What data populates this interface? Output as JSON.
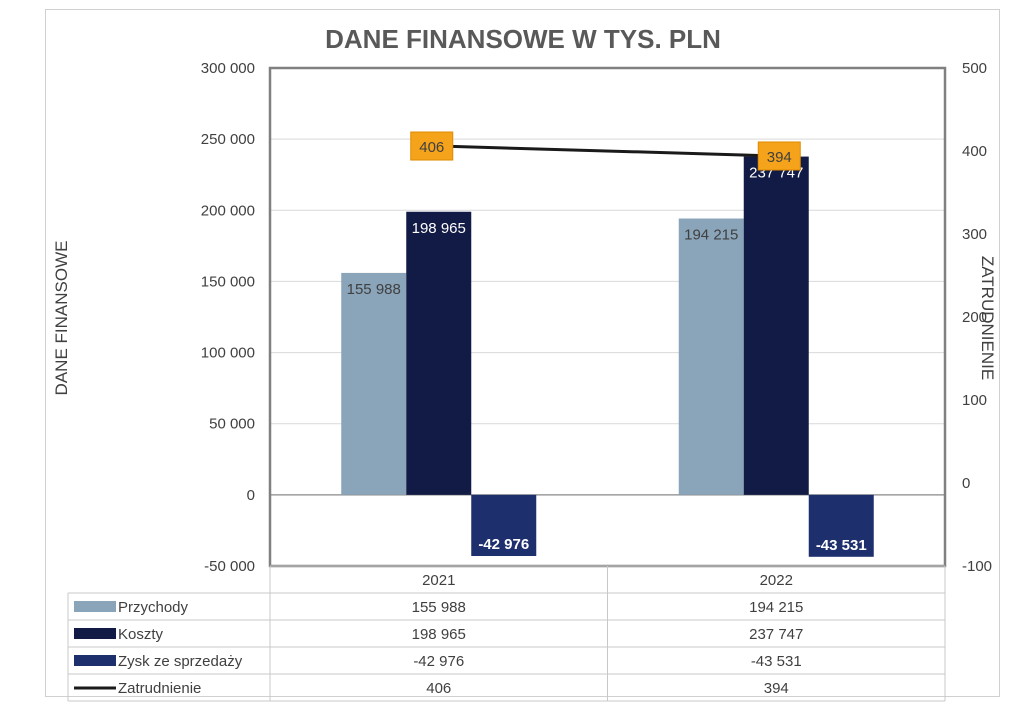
{
  "chart_data": {
    "type": "bar",
    "title": "DANE FINANSOWE W TYS. PLN",
    "ylabel": "DANE FINANSOWE",
    "y2label": "ZATRUDNIENIE",
    "categories": [
      "2021",
      "2022"
    ],
    "ylim": [
      -50000,
      300000
    ],
    "y2lim": [
      -100,
      500
    ],
    "yticks": [
      "300 000",
      "250 000",
      "200 000",
      "150 000",
      "100 000",
      "50 000",
      "0",
      "-50 000"
    ],
    "y2ticks": [
      "500",
      "400",
      "300",
      "200",
      "100",
      "0",
      "-100"
    ],
    "grid": true,
    "legend": "data-table",
    "series": [
      {
        "name": "Przychody",
        "type": "bar",
        "color": "#8aa4ba",
        "values": [
          155988,
          194215
        ],
        "labels": [
          "155 988",
          "194 215"
        ]
      },
      {
        "name": "Koszty",
        "type": "bar",
        "color": "#111b45",
        "values": [
          198965,
          237747
        ],
        "labels": [
          "198 965",
          "237 747"
        ]
      },
      {
        "name": "Zysk ze sprzedaży",
        "type": "bar",
        "color": "#1e2f6e",
        "values": [
          -42976,
          -43531
        ],
        "labels": [
          "-42 976",
          "-43 531"
        ]
      },
      {
        "name": "Zatrudnienie",
        "type": "line",
        "axis": "secondary",
        "color": "#1a1a1a",
        "values": [
          406,
          394
        ],
        "labels": [
          "406",
          "394"
        ],
        "label_bg": "#f5a31a"
      }
    ],
    "table_rows": [
      {
        "name": "Przychody",
        "cells": [
          "155 988",
          "194 215"
        ]
      },
      {
        "name": "Koszty",
        "cells": [
          "198 965",
          "237 747"
        ]
      },
      {
        "name": "Zysk ze sprzedaży",
        "cells": [
          "-42 976",
          "-43 531"
        ]
      },
      {
        "name": "Zatrudnienie",
        "cells": [
          "406",
          "394"
        ]
      }
    ]
  }
}
